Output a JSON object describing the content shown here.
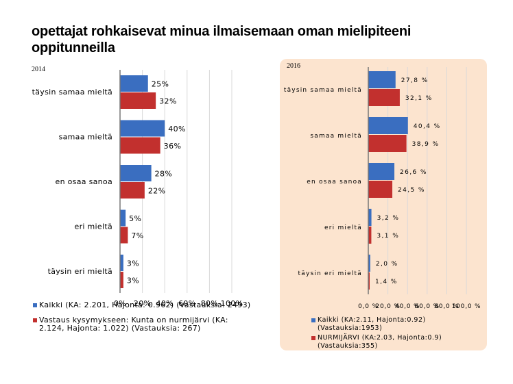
{
  "page": {
    "title": "opettajat rohkaisevat minua ilmaisemaan oman mielipiteeni oppitunneilla"
  },
  "colors": {
    "kaikki": "#3a6ec0",
    "local": "#c2302e",
    "panel_2016": "#fce4cf",
    "gridline": "#d9d9d9"
  },
  "chart_data": [
    {
      "type": "bar",
      "orientation": "horizontal",
      "year_label": "2014",
      "categories": [
        "täysin samaa mieltä",
        "samaa mieltä",
        "en osaa sanoa",
        "eri mieltä",
        "täysin eri mieltä"
      ],
      "series": [
        {
          "name": "Kaikki (KA: 2.201, Hajonta: 0.962) (Vastauksia: 2493)",
          "values": [
            25,
            40,
            28,
            5,
            3
          ]
        },
        {
          "name": "Vastaus kysymykseen: Kunta on nurmijärvi (KA: 2.124, Hajonta: 1.022) (Vastauksia: 267)",
          "values": [
            32,
            36,
            22,
            7,
            3
          ]
        }
      ],
      "data_labels": [
        [
          "25%",
          "40%",
          "28%",
          "5%",
          "3%"
        ],
        [
          "32%",
          "36%",
          "22%",
          "7%",
          "3%"
        ]
      ],
      "xticks": [
        "0%",
        "20%",
        "40%",
        "60%",
        "80%",
        "100%"
      ],
      "xlim": [
        0,
        100
      ],
      "grid": true,
      "legend_position": "bottom"
    },
    {
      "type": "bar",
      "orientation": "horizontal",
      "year_label": "2016",
      "categories": [
        "täysin samaa mieltä",
        "samaa mieltä",
        "en osaa sanoa",
        "eri mieltä",
        "täysin eri mieltä"
      ],
      "series": [
        {
          "name": "Kaikki (KA:2.11, Hajonta:0.92) (Vastauksia:1953)",
          "values": [
            27.8,
            40.4,
            26.6,
            3.2,
            2.0
          ]
        },
        {
          "name": "NURMIJÄRVI (KA:2.03, Hajonta:0.9) (Vastauksia:355)",
          "values": [
            32.1,
            38.9,
            24.5,
            3.1,
            1.4
          ]
        }
      ],
      "data_labels": [
        [
          "27,8 %",
          "40,4 %",
          "26,6 %",
          "3,2 %",
          "2,0 %"
        ],
        [
          "32,1 %",
          "38,9 %",
          "24,5 %",
          "3,1 %",
          "1,4 %"
        ]
      ],
      "xticks": [
        "0,0 %",
        "20,0 %",
        "40,0 %",
        "60,0 %",
        "80,0 %",
        "100,0 %"
      ],
      "xlim": [
        0,
        100
      ],
      "grid": true,
      "legend_position": "bottom"
    }
  ]
}
